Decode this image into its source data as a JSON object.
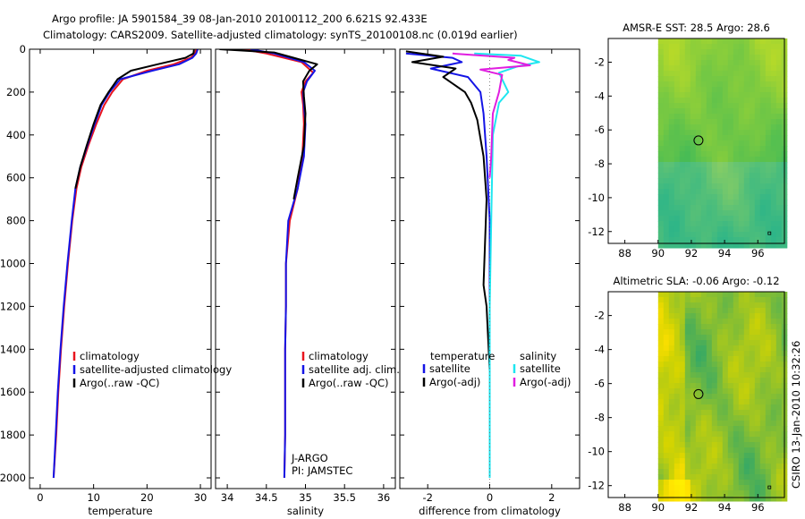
{
  "title_line1": "Argo profile: JA 5901584_39 08-Jan-2010 20100112_200 6.621S 92.433E",
  "title_line2": "Climatology: CARS2009. Satellite-adjusted climatology: synTS_20100108.nc (0.019d earlier)",
  "side_label": "CSIRO 13-Jan-2010 10:32:26",
  "colors": {
    "climatology": "#e8141e",
    "satellite": "#1414e6",
    "argo": "#000000",
    "argo_adj": "#e01ee0",
    "satellite_sal": "#1ee6f0"
  },
  "chart_data": [
    {
      "id": "temperature",
      "type": "line",
      "xlabel": "temperature",
      "ylabel": "",
      "xlim": [
        -2,
        32
      ],
      "ylim": [
        0,
        2050
      ],
      "y_reversed": true,
      "xticks": [
        0,
        10,
        20,
        30
      ],
      "yticks": [
        0,
        200,
        400,
        600,
        800,
        1000,
        1200,
        1400,
        1600,
        1800,
        2000
      ],
      "legend": [
        "climatology",
        "satellite-adjusted climatology",
        "Argo(..raw -QC)"
      ],
      "series": [
        {
          "name": "climatology",
          "color": "climatology",
          "points": [
            [
              29.2,
              0
            ],
            [
              29,
              20
            ],
            [
              28.2,
              40
            ],
            [
              25,
              70
            ],
            [
              20,
              100
            ],
            [
              15.5,
              140
            ],
            [
              13.5,
              200
            ],
            [
              12,
              260
            ],
            [
              10.5,
              350
            ],
            [
              9,
              450
            ],
            [
              7.7,
              550
            ],
            [
              6.8,
              650
            ],
            [
              6,
              800
            ],
            [
              5.2,
              1000
            ],
            [
              4.5,
              1200
            ],
            [
              3.9,
              1400
            ],
            [
              3.4,
              1600
            ],
            [
              3,
              1800
            ],
            [
              2.5,
              2000
            ]
          ]
        },
        {
          "name": "satellite-adjusted climatology",
          "color": "satellite",
          "points": [
            [
              29.5,
              0
            ],
            [
              29.2,
              20
            ],
            [
              28.5,
              40
            ],
            [
              26,
              70
            ],
            [
              21,
              100
            ],
            [
              15,
              140
            ],
            [
              13,
              200
            ],
            [
              11.5,
              260
            ],
            [
              10.2,
              350
            ],
            [
              8.8,
              450
            ],
            [
              7.5,
              550
            ],
            [
              6.6,
              650
            ],
            [
              5.9,
              800
            ],
            [
              5.1,
              1000
            ],
            [
              4.4,
              1200
            ],
            [
              3.8,
              1400
            ],
            [
              3.3,
              1600
            ],
            [
              2.9,
              1800
            ],
            [
              2.5,
              2000
            ]
          ]
        },
        {
          "name": "Argo(..raw -QC)",
          "color": "argo",
          "points": [
            [
              28.8,
              0
            ],
            [
              28.7,
              20
            ],
            [
              27.2,
              40
            ],
            [
              22,
              70
            ],
            [
              17,
              100
            ],
            [
              14.5,
              140
            ],
            [
              12.8,
              200
            ],
            [
              11.3,
              260
            ],
            [
              10,
              350
            ],
            [
              8.7,
              450
            ],
            [
              7.5,
              550
            ],
            [
              6.6,
              650
            ]
          ]
        }
      ]
    },
    {
      "id": "salinity",
      "type": "line",
      "xlabel": "salinity",
      "ylabel": "",
      "xlim": [
        33.85,
        36.15
      ],
      "ylim": [
        0,
        2050
      ],
      "y_reversed": true,
      "xticks": [
        34,
        34.5,
        35,
        35.5,
        36
      ],
      "legend": [
        "climatology",
        "satellite adj. clim.",
        "Argo(..raw -QC)"
      ],
      "annotations": [
        "J-ARGO",
        "PI: JAMSTEC"
      ],
      "series": [
        {
          "name": "climatology",
          "color": "climatology",
          "points": [
            [
              34.2,
              0
            ],
            [
              34.5,
              20
            ],
            [
              34.95,
              60
            ],
            [
              35.1,
              110
            ],
            [
              35,
              150
            ],
            [
              34.95,
              200
            ],
            [
              34.97,
              260
            ],
            [
              34.98,
              350
            ],
            [
              34.96,
              500
            ],
            [
              34.9,
              650
            ],
            [
              34.8,
              800
            ],
            [
              34.75,
              1000
            ],
            [
              34.75,
              1200
            ],
            [
              34.74,
              1400
            ],
            [
              34.74,
              1600
            ],
            [
              34.74,
              1800
            ],
            [
              34.73,
              2000
            ]
          ]
        },
        {
          "name": "satellite adj. clim.",
          "color": "satellite",
          "points": [
            [
              34.3,
              0
            ],
            [
              34.6,
              20
            ],
            [
              34.98,
              60
            ],
            [
              35.12,
              100
            ],
            [
              35.02,
              150
            ],
            [
              34.97,
              200
            ],
            [
              34.98,
              260
            ],
            [
              35,
              350
            ],
            [
              34.98,
              500
            ],
            [
              34.9,
              650
            ],
            [
              34.78,
              800
            ],
            [
              34.75,
              1000
            ],
            [
              34.75,
              1200
            ],
            [
              34.74,
              1400
            ],
            [
              34.74,
              1600
            ],
            [
              34.74,
              1800
            ],
            [
              34.73,
              2000
            ]
          ]
        },
        {
          "name": "Argo(..raw -QC)",
          "color": "argo",
          "points": [
            [
              33.9,
              0
            ],
            [
              34.6,
              15
            ],
            [
              34.85,
              40
            ],
            [
              35.15,
              70
            ],
            [
              35.05,
              100
            ],
            [
              34.97,
              150
            ],
            [
              34.98,
              220
            ],
            [
              35,
              300
            ],
            [
              34.98,
              450
            ],
            [
              34.9,
              600
            ],
            [
              34.85,
              700
            ]
          ]
        }
      ]
    },
    {
      "id": "difference",
      "type": "line",
      "xlabel": "difference from climatology",
      "ylabel": "",
      "xlim": [
        -2.9,
        2.9
      ],
      "ylim": [
        0,
        2050
      ],
      "y_reversed": true,
      "xticks": [
        -2,
        0,
        2
      ],
      "legend": [
        "temperature",
        "satellite",
        "Argo(-adj)",
        "salinity",
        "satellite",
        "Argo(-adj)"
      ],
      "series": [
        {
          "name": "temperature satellite",
          "color": "satellite",
          "points": [
            [
              -2.7,
              20
            ],
            [
              -1.2,
              40
            ],
            [
              -0.9,
              60
            ],
            [
              -1.9,
              90
            ],
            [
              -0.7,
              130
            ],
            [
              -0.3,
              200
            ],
            [
              -0.2,
              300
            ],
            [
              -0.1,
              500
            ],
            [
              0,
              800
            ],
            [
              0,
              1200
            ],
            [
              0,
              2000
            ]
          ]
        },
        {
          "name": "temperature Argo(-adj)",
          "color": "argo",
          "points": [
            [
              -2.7,
              10
            ],
            [
              -1.5,
              35
            ],
            [
              -2.5,
              60
            ],
            [
              -1.1,
              90
            ],
            [
              -1.5,
              130
            ],
            [
              -0.8,
              200
            ],
            [
              -0.6,
              250
            ],
            [
              -0.4,
              330
            ],
            [
              -0.2,
              500
            ],
            [
              -0.1,
              700
            ],
            [
              -0.15,
              900
            ],
            [
              -0.2,
              1100
            ],
            [
              -0.1,
              1200
            ],
            [
              0,
              1500
            ],
            [
              0,
              2000
            ]
          ]
        },
        {
          "name": "salinity satellite",
          "color": "satellite_sal",
          "points": [
            [
              -0.5,
              20
            ],
            [
              1,
              30
            ],
            [
              1.6,
              60
            ],
            [
              0.9,
              80
            ],
            [
              0.3,
              110
            ],
            [
              0.6,
              200
            ],
            [
              0.3,
              250
            ],
            [
              0.1,
              400
            ],
            [
              0.05,
              800
            ],
            [
              0,
              1200
            ],
            [
              0,
              2000
            ]
          ]
        },
        {
          "name": "salinity Argo(-adj)",
          "color": "argo_adj",
          "points": [
            [
              -1.2,
              20
            ],
            [
              0.8,
              40
            ],
            [
              0.6,
              50
            ],
            [
              1.3,
              75
            ],
            [
              -0.3,
              95
            ],
            [
              0.4,
              120
            ],
            [
              0.3,
              200
            ],
            [
              0.1,
              300
            ],
            [
              0.05,
              500
            ],
            [
              0,
              600
            ]
          ]
        }
      ]
    },
    {
      "id": "sst_map",
      "type": "heatmap",
      "title": "AMSR-E SST: 28.5 Argo: 28.6",
      "xlim": [
        87,
        97.6
      ],
      "ylim": [
        -12.7,
        -0.6
      ],
      "xticks": [
        88,
        90,
        92,
        94,
        96
      ],
      "yticks": [
        -2,
        -4,
        -6,
        -8,
        -10,
        -12
      ],
      "argo_position": [
        92.43,
        -6.62
      ]
    },
    {
      "id": "sla_map",
      "type": "heatmap",
      "title": "Altimetric SLA: -0.06 Argo: -0.12",
      "xlim": [
        87,
        97.6
      ],
      "ylim": [
        -12.7,
        -0.6
      ],
      "xticks": [
        88,
        90,
        92,
        94,
        96
      ],
      "yticks": [
        -2,
        -4,
        -6,
        -8,
        -10,
        -12
      ],
      "argo_position": [
        92.43,
        -6.62
      ]
    }
  ]
}
